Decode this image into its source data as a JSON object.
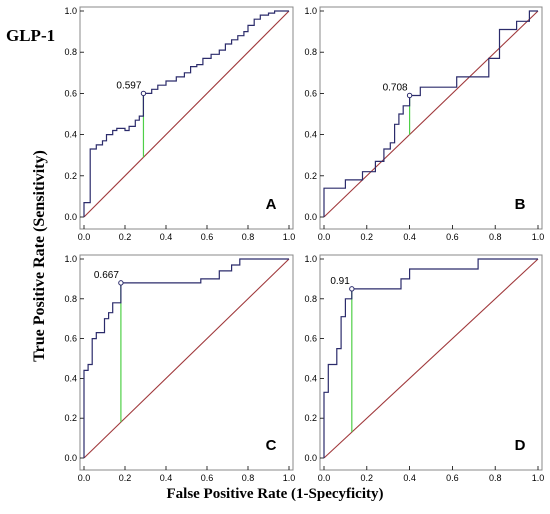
{
  "figure": {
    "title": "GLP-1",
    "ylabel": "True Positive Rate (Sensitivity)",
    "xlabel": "False Positive Rate (1-Specyficity)"
  },
  "colors": {
    "roc": "#2b2b6b",
    "diagonal": "#a0393c",
    "cutoff": "#4fcf47",
    "frame": "#888888"
  },
  "chart_data": [
    {
      "type": "line",
      "panel": "A",
      "xlim": [
        0,
        1
      ],
      "ylim": [
        0,
        1
      ],
      "x_ticks": [
        "0.0",
        "0.2",
        "0.4",
        "0.6",
        "0.8",
        "1.0"
      ],
      "y_ticks": [
        "0.0",
        "0.2",
        "0.4",
        "0.6",
        "0.8",
        "1.0"
      ],
      "cutoff": {
        "x": 0.29,
        "y": 0.6,
        "label": "0.597"
      },
      "roc": [
        [
          0,
          0
        ],
        [
          0,
          0.07
        ],
        [
          0.03,
          0.07
        ],
        [
          0.03,
          0.33
        ],
        [
          0.06,
          0.33
        ],
        [
          0.06,
          0.35
        ],
        [
          0.09,
          0.35
        ],
        [
          0.09,
          0.37
        ],
        [
          0.11,
          0.37
        ],
        [
          0.11,
          0.4
        ],
        [
          0.14,
          0.4
        ],
        [
          0.14,
          0.42
        ],
        [
          0.16,
          0.42
        ],
        [
          0.16,
          0.43
        ],
        [
          0.2,
          0.43
        ],
        [
          0.2,
          0.42
        ],
        [
          0.22,
          0.42
        ],
        [
          0.22,
          0.44
        ],
        [
          0.25,
          0.44
        ],
        [
          0.25,
          0.47
        ],
        [
          0.27,
          0.47
        ],
        [
          0.27,
          0.49
        ],
        [
          0.29,
          0.49
        ],
        [
          0.29,
          0.6
        ],
        [
          0.33,
          0.6
        ],
        [
          0.33,
          0.62
        ],
        [
          0.36,
          0.62
        ],
        [
          0.36,
          0.64
        ],
        [
          0.4,
          0.64
        ],
        [
          0.4,
          0.66
        ],
        [
          0.45,
          0.66
        ],
        [
          0.45,
          0.68
        ],
        [
          0.49,
          0.68
        ],
        [
          0.49,
          0.7
        ],
        [
          0.52,
          0.7
        ],
        [
          0.52,
          0.73
        ],
        [
          0.55,
          0.73
        ],
        [
          0.55,
          0.74
        ],
        [
          0.58,
          0.74
        ],
        [
          0.58,
          0.77
        ],
        [
          0.62,
          0.77
        ],
        [
          0.62,
          0.79
        ],
        [
          0.66,
          0.79
        ],
        [
          0.66,
          0.81
        ],
        [
          0.69,
          0.81
        ],
        [
          0.69,
          0.84
        ],
        [
          0.72,
          0.84
        ],
        [
          0.72,
          0.86
        ],
        [
          0.75,
          0.86
        ],
        [
          0.75,
          0.88
        ],
        [
          0.78,
          0.88
        ],
        [
          0.78,
          0.9
        ],
        [
          0.8,
          0.9
        ],
        [
          0.8,
          0.93
        ],
        [
          0.83,
          0.93
        ],
        [
          0.83,
          0.96
        ],
        [
          0.86,
          0.96
        ],
        [
          0.86,
          0.98
        ],
        [
          0.9,
          0.98
        ],
        [
          0.9,
          0.99
        ],
        [
          0.93,
          0.99
        ],
        [
          0.93,
          1.0
        ],
        [
          1.0,
          1.0
        ]
      ]
    },
    {
      "type": "line",
      "panel": "B",
      "xlim": [
        0,
        1
      ],
      "ylim": [
        0,
        1
      ],
      "x_ticks": [
        "0.0",
        "0.2",
        "0.4",
        "0.6",
        "0.8",
        "1.0"
      ],
      "y_ticks": [
        "0.0",
        "0.2",
        "0.4",
        "0.6",
        "0.8",
        "1.0"
      ],
      "cutoff": {
        "x": 0.4,
        "y": 0.59,
        "label": "0.708"
      },
      "roc": [
        [
          0,
          0
        ],
        [
          0,
          0.14
        ],
        [
          0.1,
          0.14
        ],
        [
          0.1,
          0.18
        ],
        [
          0.18,
          0.18
        ],
        [
          0.18,
          0.22
        ],
        [
          0.24,
          0.22
        ],
        [
          0.24,
          0.27
        ],
        [
          0.28,
          0.27
        ],
        [
          0.28,
          0.33
        ],
        [
          0.31,
          0.33
        ],
        [
          0.31,
          0.36
        ],
        [
          0.33,
          0.36
        ],
        [
          0.33,
          0.45
        ],
        [
          0.35,
          0.45
        ],
        [
          0.35,
          0.5
        ],
        [
          0.37,
          0.5
        ],
        [
          0.37,
          0.54
        ],
        [
          0.4,
          0.54
        ],
        [
          0.4,
          0.59
        ],
        [
          0.45,
          0.59
        ],
        [
          0.45,
          0.63
        ],
        [
          0.62,
          0.63
        ],
        [
          0.62,
          0.68
        ],
        [
          0.77,
          0.68
        ],
        [
          0.77,
          0.77
        ],
        [
          0.82,
          0.77
        ],
        [
          0.82,
          0.91
        ],
        [
          0.9,
          0.91
        ],
        [
          0.9,
          0.95
        ],
        [
          0.96,
          0.95
        ],
        [
          0.96,
          1.0
        ],
        [
          1.0,
          1.0
        ]
      ]
    },
    {
      "type": "line",
      "panel": "C",
      "xlim": [
        0,
        1
      ],
      "ylim": [
        0,
        1
      ],
      "x_ticks": [
        "0.0",
        "0.2",
        "0.4",
        "0.6",
        "0.8",
        "1.0"
      ],
      "y_ticks": [
        "0.0",
        "0.2",
        "0.4",
        "0.6",
        "0.8",
        "1.0"
      ],
      "cutoff": {
        "x": 0.18,
        "y": 0.88,
        "label": "0.667"
      },
      "roc": [
        [
          0,
          0
        ],
        [
          0,
          0.44
        ],
        [
          0.02,
          0.44
        ],
        [
          0.02,
          0.47
        ],
        [
          0.04,
          0.47
        ],
        [
          0.04,
          0.6
        ],
        [
          0.06,
          0.6
        ],
        [
          0.06,
          0.63
        ],
        [
          0.1,
          0.63
        ],
        [
          0.1,
          0.7
        ],
        [
          0.12,
          0.7
        ],
        [
          0.12,
          0.73
        ],
        [
          0.14,
          0.73
        ],
        [
          0.14,
          0.78
        ],
        [
          0.18,
          0.78
        ],
        [
          0.18,
          0.88
        ],
        [
          0.57,
          0.88
        ],
        [
          0.57,
          0.9
        ],
        [
          0.66,
          0.9
        ],
        [
          0.66,
          0.94
        ],
        [
          0.72,
          0.94
        ],
        [
          0.72,
          0.97
        ],
        [
          0.76,
          0.97
        ],
        [
          0.76,
          1.0
        ],
        [
          1.0,
          1.0
        ]
      ]
    },
    {
      "type": "line",
      "panel": "D",
      "xlim": [
        0,
        1
      ],
      "ylim": [
        0,
        1
      ],
      "x_ticks": [
        "0.0",
        "0.2",
        "0.4",
        "0.6",
        "0.8",
        "1.0"
      ],
      "y_ticks": [
        "0.0",
        "0.2",
        "0.4",
        "0.6",
        "0.8",
        "1.0"
      ],
      "cutoff": {
        "x": 0.13,
        "y": 0.85,
        "label": "0.91"
      },
      "roc": [
        [
          0,
          0
        ],
        [
          0,
          0.33
        ],
        [
          0.02,
          0.33
        ],
        [
          0.02,
          0.47
        ],
        [
          0.06,
          0.47
        ],
        [
          0.06,
          0.55
        ],
        [
          0.08,
          0.55
        ],
        [
          0.08,
          0.71
        ],
        [
          0.1,
          0.71
        ],
        [
          0.1,
          0.8
        ],
        [
          0.13,
          0.8
        ],
        [
          0.13,
          0.85
        ],
        [
          0.36,
          0.85
        ],
        [
          0.36,
          0.9
        ],
        [
          0.4,
          0.9
        ],
        [
          0.4,
          0.95
        ],
        [
          0.72,
          0.95
        ],
        [
          0.72,
          1.0
        ],
        [
          1.0,
          1.0
        ]
      ]
    }
  ]
}
